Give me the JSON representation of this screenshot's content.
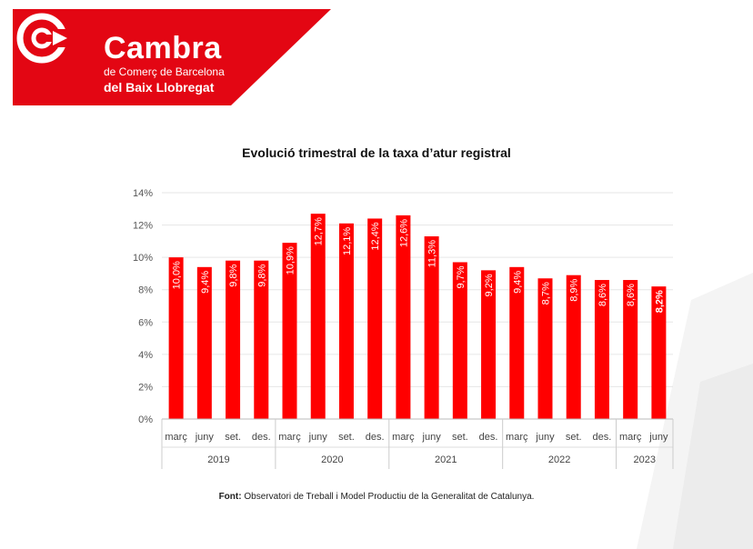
{
  "header": {
    "brand_name": "Cambra",
    "brand_sub": "de Comerç de Barcelona",
    "brand_sub2": "del Baix Llobregat",
    "brand_color": "#e30613"
  },
  "chart_data": {
    "type": "bar",
    "title": "Evolució trimestral de la taxa d’atur registral",
    "xlabel": "",
    "ylabel": "",
    "ylim": [
      0,
      14
    ],
    "yticks": [
      "0%",
      "2%",
      "4%",
      "6%",
      "8%",
      "10%",
      "12%",
      "14%"
    ],
    "grid": true,
    "bar_color": "#ff0000",
    "categories": [
      "març",
      "juny",
      "set.",
      "des.",
      "març",
      "juny",
      "set.",
      "des.",
      "març",
      "juny",
      "set.",
      "des.",
      "març",
      "juny",
      "set.",
      "des.",
      "març",
      "juny"
    ],
    "groups": [
      {
        "label": "2019",
        "count": 4
      },
      {
        "label": "2020",
        "count": 4
      },
      {
        "label": "2021",
        "count": 4
      },
      {
        "label": "2022",
        "count": 4
      },
      {
        "label": "2023",
        "count": 2
      }
    ],
    "values": [
      10.0,
      9.4,
      9.8,
      9.8,
      10.9,
      12.7,
      12.1,
      12.4,
      12.6,
      11.3,
      9.7,
      9.2,
      9.4,
      8.7,
      8.9,
      8.6,
      8.6,
      8.2
    ],
    "value_labels": [
      "10,0%",
      "9,4%",
      "9,8%",
      "9,8%",
      "10,9%",
      "12,7%",
      "12,1%",
      "12,4%",
      "12,6%",
      "11,3%",
      "9,7%",
      "9,2%",
      "9,4%",
      "8,7%",
      "8,9%",
      "8,6%",
      "8,6%",
      "8,2%"
    ],
    "highlight_last": true
  },
  "source": {
    "label": "Font:",
    "text": " Observatori de Treball i Model Productiu de la Generalitat de Catalunya."
  }
}
